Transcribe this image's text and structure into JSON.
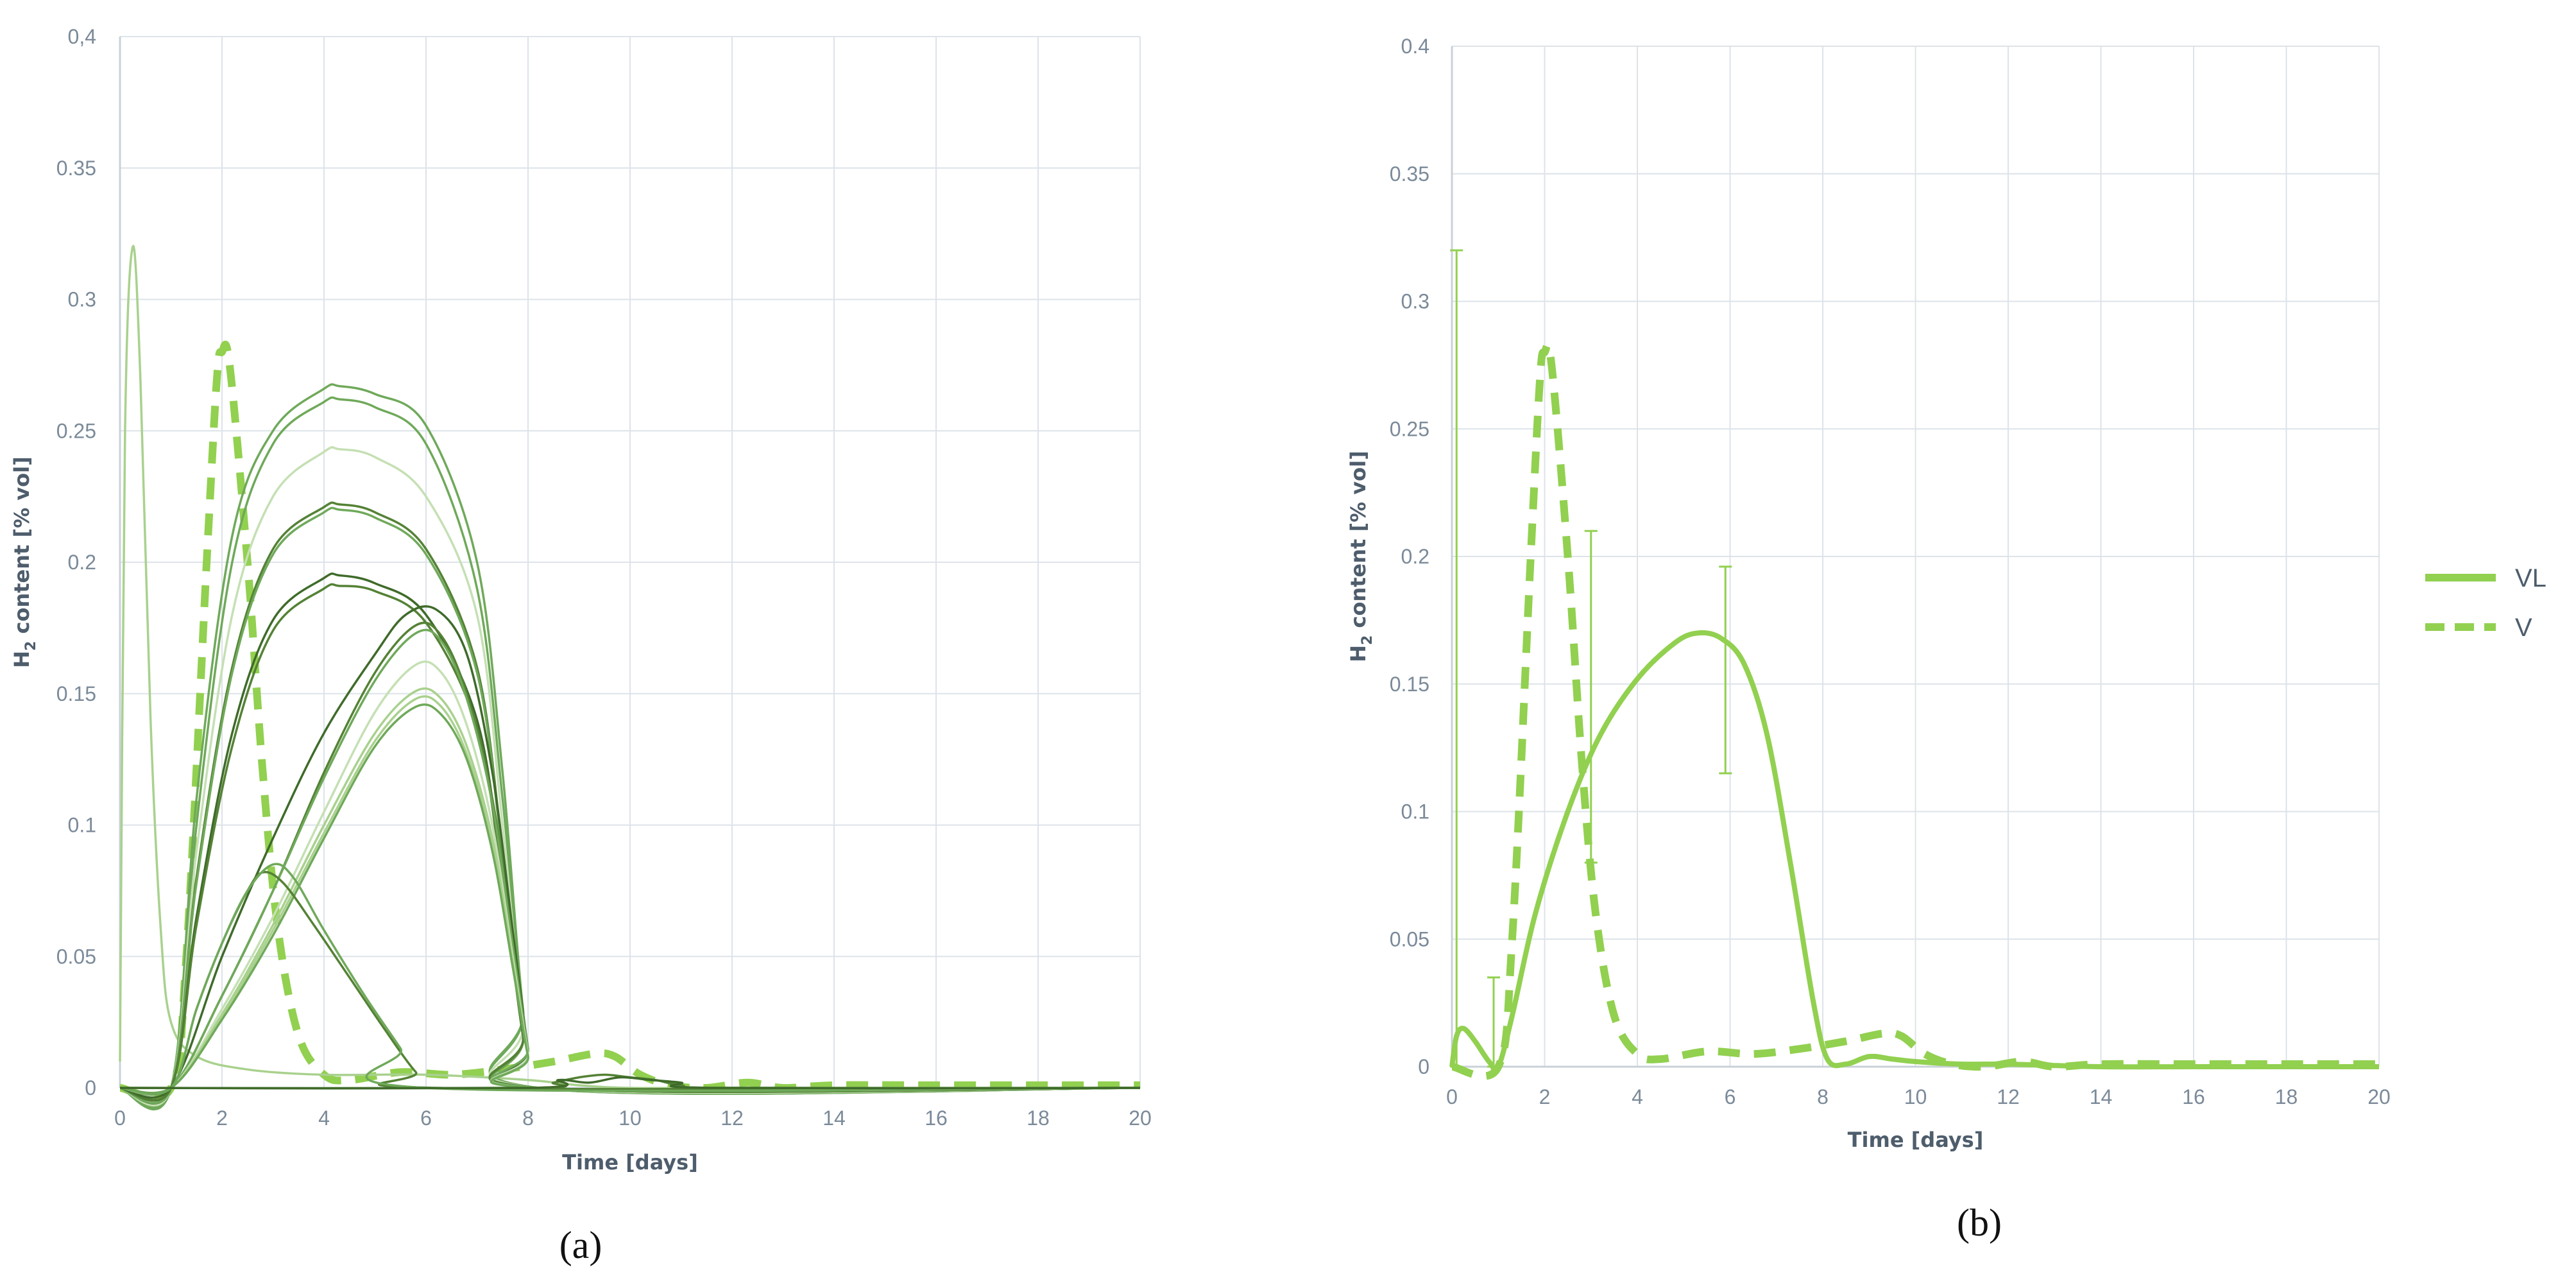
{
  "chart_data": [
    {
      "panel": "(a)",
      "type": "line",
      "ylabel_main": "H",
      "ylabel_sub": "2",
      "ylabel_rest": " content [% vol]",
      "xlabel": "Time [days]",
      "xlim": [
        0,
        20
      ],
      "ylim": [
        0,
        0.4
      ],
      "x_ticks": [
        "0",
        "2",
        "4",
        "6",
        "8",
        "10",
        "12",
        "14",
        "16",
        "18",
        "20"
      ],
      "y_ticks": [
        "0",
        "0.05",
        "0.1",
        "0.15",
        "0.2",
        "0.25",
        "0.3",
        "0.35",
        "0,4"
      ],
      "grid": true,
      "series": [
        {
          "style": "dashed-bold",
          "color": "#92d050",
          "x": [
            0,
            1,
            1.3,
            1.7,
            1.9,
            2.0,
            2.15,
            2.5,
            2.8,
            3.1,
            3.5,
            4.0,
            4.5,
            5.5,
            6.5,
            7.5,
            8.5,
            9.3,
            9.7,
            10.2,
            10.8,
            11.5,
            12.3,
            13,
            14,
            16,
            18,
            20
          ],
          "y": [
            0,
            0,
            0.05,
            0.2,
            0.27,
            0.28,
            0.275,
            0.2,
            0.12,
            0.06,
            0.02,
            0.005,
            0.003,
            0.006,
            0.005,
            0.007,
            0.01,
            0.013,
            0.012,
            0.005,
            0.001,
            0,
            0.002,
            0,
            0.001,
            0.001,
            0.001,
            0.001
          ]
        },
        {
          "style": "thin",
          "color": "#a9d18e",
          "x": [
            0,
            0.1,
            0.25,
            0.4,
            0.6,
            0.8,
            1.0,
            1.5,
            2.5,
            4,
            6,
            8,
            9,
            10,
            12,
            20
          ],
          "y": [
            0.01,
            0.25,
            0.32,
            0.27,
            0.14,
            0.06,
            0.025,
            0.012,
            0.007,
            0.005,
            0.005,
            0.003,
            0.001,
            0,
            0,
            0
          ]
        },
        {
          "style": "thin",
          "color": "#6fa95a",
          "x": [
            0,
            1,
            1.5,
            2.2,
            3,
            4,
            4.3,
            5,
            6,
            7,
            7.5,
            7.9,
            8.2,
            20
          ],
          "y": [
            0,
            0,
            0.11,
            0.21,
            0.25,
            0.266,
            0.267,
            0.264,
            0.252,
            0.2,
            0.12,
            0.03,
            0,
            0
          ]
        },
        {
          "style": "thin",
          "color": "#6fa95a",
          "x": [
            0,
            1,
            1.5,
            2.2,
            3,
            4,
            4.3,
            5,
            6,
            7,
            7.5,
            7.9,
            8.2,
            20
          ],
          "y": [
            0,
            0,
            0.1,
            0.2,
            0.245,
            0.261,
            0.262,
            0.259,
            0.245,
            0.19,
            0.11,
            0.03,
            0,
            0
          ]
        },
        {
          "style": "thin",
          "color": "#c5e0b4",
          "x": [
            0,
            1,
            1.5,
            2.2,
            3,
            4,
            4.3,
            5,
            6,
            7,
            7.5,
            7.9,
            8.2,
            20
          ],
          "y": [
            0,
            0,
            0.09,
            0.18,
            0.225,
            0.242,
            0.243,
            0.24,
            0.225,
            0.18,
            0.1,
            0.025,
            0,
            0
          ]
        },
        {
          "style": "thin",
          "color": "#548235",
          "x": [
            0,
            1,
            1.5,
            2.2,
            3,
            4,
            4.3,
            5,
            6,
            7,
            7.5,
            7.9,
            8.2,
            20
          ],
          "y": [
            0,
            0,
            0.08,
            0.16,
            0.205,
            0.221,
            0.222,
            0.219,
            0.205,
            0.16,
            0.09,
            0.02,
            0,
            0
          ]
        },
        {
          "style": "thin",
          "color": "#6fa95a",
          "x": [
            0,
            1,
            1.5,
            2.2,
            3,
            4,
            4.3,
            5,
            6,
            7,
            7.5,
            7.9,
            8.2,
            20
          ],
          "y": [
            0,
            0,
            0.078,
            0.158,
            0.203,
            0.219,
            0.22,
            0.217,
            0.203,
            0.158,
            0.088,
            0.02,
            0,
            0
          ]
        },
        {
          "style": "thin",
          "color": "#3f6b2a",
          "x": [
            0,
            1,
            1.5,
            2.2,
            3,
            4,
            4.3,
            5,
            6,
            7,
            7.5,
            7.9,
            8.2,
            20
          ],
          "y": [
            0,
            0,
            0.065,
            0.135,
            0.178,
            0.194,
            0.195,
            0.192,
            0.18,
            0.14,
            0.08,
            0.02,
            0,
            0
          ]
        },
        {
          "style": "thin",
          "color": "#548235",
          "x": [
            0,
            1,
            1.5,
            2.2,
            3,
            4,
            4.3,
            5,
            6,
            7,
            7.5,
            7.9,
            8.2,
            20
          ],
          "y": [
            0,
            0,
            0.062,
            0.13,
            0.174,
            0.19,
            0.191,
            0.189,
            0.177,
            0.137,
            0.078,
            0.02,
            0,
            0
          ]
        },
        {
          "style": "thin",
          "color": "#3f6b2a",
          "x": [
            0,
            1,
            2,
            3,
            4,
            5,
            5.6,
            6.2,
            6.8,
            7.3,
            7.7,
            8.0,
            8.2,
            20
          ],
          "y": [
            0,
            0,
            0.05,
            0.095,
            0.135,
            0.165,
            0.18,
            0.182,
            0.165,
            0.12,
            0.06,
            0.015,
            0,
            0
          ]
        },
        {
          "style": "thin",
          "color": "#548235",
          "x": [
            0,
            1,
            2,
            3,
            4,
            5,
            5.8,
            6.3,
            6.8,
            7.3,
            7.7,
            8.0,
            8.2,
            20
          ],
          "y": [
            0,
            0,
            0.035,
            0.075,
            0.12,
            0.158,
            0.176,
            0.172,
            0.15,
            0.11,
            0.055,
            0.015,
            0,
            0
          ]
        },
        {
          "style": "thin",
          "color": "#6fa95a",
          "x": [
            0,
            1,
            2,
            3,
            4,
            5,
            5.8,
            6.3,
            6.8,
            7.3,
            7.7,
            8.0,
            8.2,
            20
          ],
          "y": [
            0,
            0,
            0.035,
            0.075,
            0.118,
            0.155,
            0.173,
            0.17,
            0.148,
            0.108,
            0.054,
            0.015,
            0,
            0
          ]
        },
        {
          "style": "thin",
          "color": "#c5e0b4",
          "x": [
            0,
            1,
            2,
            3,
            4,
            5,
            5.8,
            6.3,
            6.8,
            7.3,
            7.7,
            8.0,
            8.2,
            20
          ],
          "y": [
            0,
            0,
            0.03,
            0.065,
            0.105,
            0.143,
            0.161,
            0.158,
            0.138,
            0.1,
            0.05,
            0.013,
            0,
            0
          ]
        },
        {
          "style": "thin",
          "color": "#a9d18e",
          "x": [
            0,
            1,
            2,
            3,
            4,
            5,
            5.8,
            6.3,
            6.8,
            7.3,
            7.7,
            8.0,
            8.2,
            20
          ],
          "y": [
            0,
            0,
            0.028,
            0.062,
            0.1,
            0.135,
            0.151,
            0.148,
            0.13,
            0.095,
            0.048,
            0.012,
            0,
            0
          ]
        },
        {
          "style": "thin",
          "color": "#a9d18e",
          "x": [
            0,
            1,
            2,
            3,
            4,
            5,
            5.8,
            6.3,
            6.8,
            7.3,
            7.7,
            8.0,
            8.2,
            20
          ],
          "y": [
            0,
            0,
            0.027,
            0.06,
            0.097,
            0.132,
            0.148,
            0.145,
            0.127,
            0.093,
            0.047,
            0.012,
            0,
            0
          ]
        },
        {
          "style": "thin",
          "color": "#6fa95a",
          "x": [
            0,
            1,
            2,
            3,
            4,
            5,
            5.8,
            6.3,
            6.8,
            7.3,
            7.7,
            8.0,
            8.2,
            20
          ],
          "y": [
            0,
            0,
            0.026,
            0.058,
            0.095,
            0.13,
            0.145,
            0.142,
            0.125,
            0.09,
            0.046,
            0.012,
            0,
            0
          ]
        },
        {
          "style": "thin",
          "color": "#548235",
          "x": [
            0,
            1,
            1.5,
            2,
            2.5,
            2.8,
            3.2,
            3.8,
            4.5,
            5.2,
            5.8,
            6.2,
            20
          ],
          "y": [
            0,
            0,
            0.03,
            0.055,
            0.075,
            0.082,
            0.078,
            0.062,
            0.042,
            0.022,
            0.006,
            0,
            0
          ]
        },
        {
          "style": "thin",
          "color": "#6fa95a",
          "x": [
            0,
            1,
            1.5,
            2,
            2.5,
            3,
            3.4,
            4,
            4.8,
            5.5,
            6.0,
            20
          ],
          "y": [
            0,
            0,
            0.03,
            0.055,
            0.075,
            0.085,
            0.08,
            0.06,
            0.035,
            0.015,
            0,
            0
          ]
        },
        {
          "style": "thin",
          "color": "#548235",
          "x": [
            0,
            8,
            8.5,
            9,
            9.5,
            10,
            10.5,
            11,
            12,
            20
          ],
          "y": [
            0,
            0,
            0.002,
            0.004,
            0.005,
            0.004,
            0.003,
            0.001,
            0,
            0
          ]
        },
        {
          "style": "thin",
          "color": "#3f6b2a",
          "x": [
            0,
            8,
            8.6,
            9.2,
            9.8,
            10.4,
            11,
            11.6,
            20
          ],
          "y": [
            0,
            0,
            0.003,
            0.002,
            0.004,
            0.003,
            0.002,
            0,
            0
          ]
        }
      ]
    },
    {
      "panel": "(b)",
      "type": "line",
      "ylabel_main": "H",
      "ylabel_sub": "2",
      "ylabel_rest": " content [% vol]",
      "xlabel": "Time [days]",
      "xlim": [
        0,
        20
      ],
      "ylim": [
        0,
        0.4
      ],
      "x_ticks": [
        "0",
        "2",
        "4",
        "6",
        "8",
        "10",
        "12",
        "14",
        "16",
        "18",
        "20"
      ],
      "y_ticks": [
        "0",
        "0.05",
        "0.1",
        "0.15",
        "0.2",
        "0.25",
        "0.3",
        "0.35",
        "0.4"
      ],
      "grid": true,
      "legend_position": "right",
      "series": [
        {
          "name": "VL",
          "style": "solid-bold",
          "color": "#92d050",
          "x": [
            0,
            0.1,
            0.25,
            0.5,
            0.8,
            1.0,
            1.3,
            1.8,
            2.5,
            3.2,
            4.0,
            4.8,
            5.3,
            5.8,
            6.3,
            6.8,
            7.3,
            7.8,
            8.1,
            8.5,
            9.0,
            9.5,
            10,
            11,
            12,
            14,
            16,
            18,
            20
          ],
          "y": [
            0,
            0.012,
            0.015,
            0.01,
            0.002,
            0,
            0.02,
            0.06,
            0.1,
            0.13,
            0.152,
            0.166,
            0.17,
            0.168,
            0.158,
            0.13,
            0.08,
            0.025,
            0.003,
            0.001,
            0.004,
            0.003,
            0.002,
            0.001,
            0.001,
            0,
            0,
            0,
            0
          ]
        },
        {
          "name": "V",
          "style": "dashed-bold",
          "color": "#92d050",
          "x": [
            0,
            1,
            1.3,
            1.7,
            1.9,
            2.0,
            2.15,
            2.5,
            2.8,
            3.1,
            3.5,
            4.0,
            4.5,
            5.5,
            6.5,
            7.5,
            8.5,
            9.3,
            9.7,
            10.2,
            10.8,
            11.5,
            12.3,
            13,
            14,
            16,
            18,
            20
          ],
          "y": [
            0,
            0,
            0.05,
            0.2,
            0.27,
            0.28,
            0.275,
            0.2,
            0.12,
            0.06,
            0.02,
            0.005,
            0.003,
            0.006,
            0.005,
            0.007,
            0.01,
            0.013,
            0.012,
            0.005,
            0.001,
            0,
            0.002,
            0,
            0.001,
            0.001,
            0.001,
            0.001
          ]
        }
      ],
      "error_bars": [
        {
          "x": 0.1,
          "low": 0,
          "high": 0.32
        },
        {
          "x": 0.9,
          "low": 0,
          "high": 0.035
        },
        {
          "x": 3.0,
          "low": 0.08,
          "high": 0.21
        },
        {
          "x": 5.9,
          "low": 0.115,
          "high": 0.196
        }
      ]
    }
  ],
  "labels": {
    "panel_a": "(a)",
    "panel_b": "(b)"
  },
  "legend": [
    {
      "label": "VL"
    },
    {
      "label": "V"
    }
  ]
}
